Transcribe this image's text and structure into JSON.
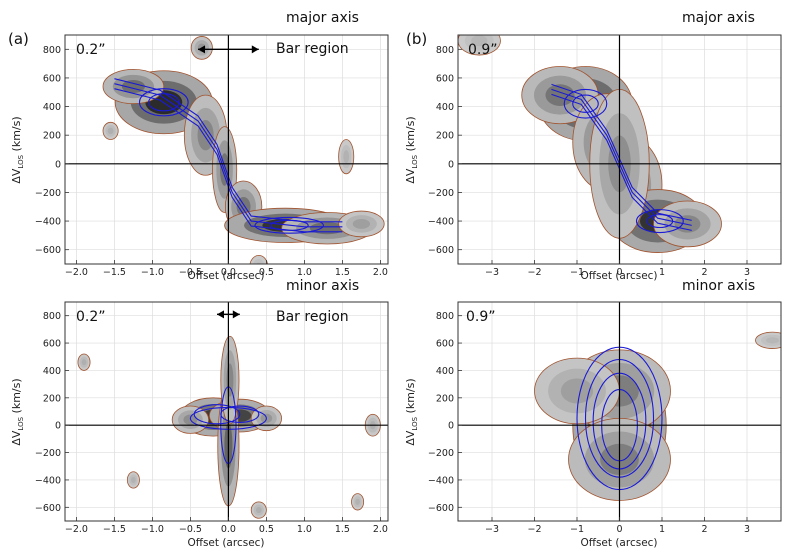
{
  "figure": {
    "label_a": "(a)",
    "label_b": "(b)",
    "colors": {
      "outer_contour": "#a0522d",
      "model_contour": "#1a1ad6",
      "emission_dark": "#2b2b2b",
      "emission_light": "#d0d0d0",
      "zero_lines": "#000000",
      "grid": "#dddddd"
    }
  },
  "chart_data": [
    {
      "type": "heatmap",
      "panel": "a-top",
      "title": "major axis",
      "resolution": "0.2”",
      "annotation": "Bar region",
      "xlabel": "Offset (arcsec)",
      "ylabel_main": "ΔV",
      "ylabel_sub": "LOS",
      "ylabel_unit": "(km/s)",
      "xlim": [
        -2.15,
        2.1
      ],
      "ylim": [
        -700,
        900
      ],
      "xticks": [
        -2.0,
        -1.5,
        -1.0,
        -0.5,
        0.0,
        0.5,
        1.0,
        1.5,
        2.0
      ],
      "xtick_labels": [
        "−2.0",
        "−1.5",
        "−1.0",
        "−0.5",
        "0.0",
        "0.5",
        "1.0",
        "1.5",
        "2.0"
      ],
      "yticks": [
        -600,
        -400,
        -200,
        0,
        200,
        400,
        600,
        800
      ],
      "ytick_labels": [
        "−600",
        "−400",
        "−200",
        "0",
        "200",
        "400",
        "600",
        "800"
      ],
      "bar_region": [
        -0.4,
        0.4
      ],
      "arrow_velocity": 800,
      "emission": [
        {
          "x": -0.85,
          "y": 430,
          "sx": 0.32,
          "sy": 110,
          "amp": 1.0
        },
        {
          "x": -1.25,
          "y": 540,
          "sx": 0.2,
          "sy": 60,
          "amp": 0.6
        },
        {
          "x": -0.3,
          "y": 200,
          "sx": 0.14,
          "sy": 140,
          "amp": 0.45
        },
        {
          "x": -0.05,
          "y": -40,
          "sx": 0.08,
          "sy": 150,
          "amp": 0.55
        },
        {
          "x": 0.2,
          "y": -300,
          "sx": 0.12,
          "sy": 90,
          "amp": 0.55
        },
        {
          "x": 0.75,
          "y": -430,
          "sx": 0.4,
          "sy": 60,
          "amp": 0.95
        },
        {
          "x": 1.3,
          "y": -450,
          "sx": 0.3,
          "sy": 55,
          "amp": 0.6
        },
        {
          "x": 1.75,
          "y": -420,
          "sx": 0.15,
          "sy": 45,
          "amp": 0.3
        },
        {
          "x": -0.35,
          "y": 810,
          "sx": 0.07,
          "sy": 40,
          "amp": 0.35
        },
        {
          "x": -1.55,
          "y": 230,
          "sx": 0.05,
          "sy": 30,
          "amp": 0.2
        },
        {
          "x": 1.55,
          "y": 50,
          "sx": 0.05,
          "sy": 60,
          "amp": 0.18
        },
        {
          "x": 0.4,
          "y": -720,
          "sx": 0.06,
          "sy": 40,
          "amp": 0.15
        }
      ],
      "model_contours": [
        {
          "center": [
            -0.85,
            430
          ],
          "rx": 0.32,
          "ry": 95
        },
        {
          "center": [
            -0.85,
            430
          ],
          "rx": 0.2,
          "ry": 60
        },
        {
          "center": [
            0.8,
            -430
          ],
          "rx": 0.45,
          "ry": 55
        },
        {
          "center": [
            0.8,
            -430
          ],
          "rx": 0.25,
          "ry": 35
        }
      ],
      "model_ridge": [
        [
          -1.5,
          560
        ],
        [
          -0.9,
          480
        ],
        [
          -0.4,
          300
        ],
        [
          -0.15,
          100
        ],
        [
          0.05,
          -200
        ],
        [
          0.3,
          -400
        ],
        [
          1.0,
          -440
        ],
        [
          1.5,
          -440
        ]
      ]
    },
    {
      "type": "heatmap",
      "panel": "b-top",
      "title": "major axis",
      "resolution": "0.9”",
      "annotation": "",
      "xlabel": "Offset (arcsec)",
      "ylabel_main": "ΔV",
      "ylabel_sub": "LOS",
      "ylabel_unit": "(km/s)",
      "xlim": [
        -3.8,
        3.8
      ],
      "ylim": [
        -700,
        900
      ],
      "xticks": [
        -3,
        -2,
        -1,
        0,
        1,
        2,
        3
      ],
      "xtick_labels": [
        "−3",
        "−2",
        "−1",
        "0",
        "1",
        "2",
        "3"
      ],
      "yticks": [
        -600,
        -400,
        -200,
        0,
        200,
        400,
        600,
        800
      ],
      "ytick_labels": [
        "−600",
        "−400",
        "−200",
        "0",
        "200",
        "400",
        "600",
        "800"
      ],
      "emission": [
        {
          "x": -0.8,
          "y": 420,
          "sx": 0.55,
          "sy": 130,
          "amp": 1.0
        },
        {
          "x": -1.4,
          "y": 480,
          "sx": 0.45,
          "sy": 100,
          "amp": 0.55
        },
        {
          "x": -0.3,
          "y": 150,
          "sx": 0.4,
          "sy": 170,
          "amp": 0.55
        },
        {
          "x": 0.2,
          "y": -150,
          "sx": 0.4,
          "sy": 170,
          "amp": 0.55
        },
        {
          "x": 0.9,
          "y": -400,
          "sx": 0.55,
          "sy": 110,
          "amp": 0.95
        },
        {
          "x": 1.6,
          "y": -420,
          "sx": 0.4,
          "sy": 80,
          "amp": 0.45
        },
        {
          "x": 0.0,
          "y": 0,
          "sx": 0.35,
          "sy": 260,
          "amp": 0.4
        },
        {
          "x": -3.3,
          "y": 860,
          "sx": 0.25,
          "sy": 50,
          "amp": 0.15
        }
      ],
      "model_contours": [
        {
          "center": [
            -0.8,
            420
          ],
          "rx": 0.5,
          "ry": 100
        },
        {
          "center": [
            -0.8,
            420
          ],
          "rx": 0.3,
          "ry": 60
        },
        {
          "center": [
            0.95,
            -400
          ],
          "rx": 0.55,
          "ry": 80
        },
        {
          "center": [
            0.95,
            -400
          ],
          "rx": 0.3,
          "ry": 45
        }
      ],
      "model_ridge": [
        [
          -1.6,
          520
        ],
        [
          -0.9,
          450
        ],
        [
          -0.3,
          200
        ],
        [
          0.3,
          -200
        ],
        [
          0.9,
          -380
        ],
        [
          1.7,
          -430
        ]
      ]
    },
    {
      "type": "heatmap",
      "panel": "a-bottom",
      "title": "minor axis",
      "resolution": "0.2”",
      "annotation": "Bar region",
      "xlabel": "Offset (arcsec)",
      "ylabel_main": "ΔV",
      "ylabel_sub": "LOS",
      "ylabel_unit": "(km/s)",
      "xlim": [
        -2.15,
        2.1
      ],
      "ylim": [
        -700,
        900
      ],
      "xticks": [
        -2.0,
        -1.5,
        -1.0,
        -0.5,
        0.0,
        0.5,
        1.0,
        1.5,
        2.0
      ],
      "xtick_labels": [
        "−2.0",
        "−1.5",
        "−1.0",
        "−0.5",
        "0.0",
        "0.5",
        "1.0",
        "1.5",
        "2.0"
      ],
      "yticks": [
        -600,
        -400,
        -200,
        0,
        200,
        400,
        600,
        800
      ],
      "ytick_labels": [
        "−600",
        "−400",
        "−200",
        "0",
        "200",
        "400",
        "600",
        "800"
      ],
      "bar_region": [
        -0.15,
        0.15
      ],
      "arrow_velocity": 810,
      "emission": [
        {
          "x": -0.2,
          "y": 60,
          "sx": 0.22,
          "sy": 70,
          "amp": 0.9
        },
        {
          "x": 0.15,
          "y": 70,
          "sx": 0.2,
          "sy": 60,
          "amp": 0.85
        },
        {
          "x": 0.0,
          "y": -150,
          "sx": 0.07,
          "sy": 220,
          "amp": 0.65
        },
        {
          "x": 0.02,
          "y": 330,
          "sx": 0.06,
          "sy": 160,
          "amp": 0.45
        },
        {
          "x": -0.5,
          "y": 40,
          "sx": 0.12,
          "sy": 50,
          "amp": 0.4
        },
        {
          "x": 0.5,
          "y": 50,
          "sx": 0.1,
          "sy": 45,
          "amp": 0.35
        },
        {
          "x": -1.9,
          "y": 460,
          "sx": 0.04,
          "sy": 30,
          "amp": 0.2
        },
        {
          "x": 1.9,
          "y": 0,
          "sx": 0.05,
          "sy": 40,
          "amp": 0.2
        },
        {
          "x": -1.25,
          "y": -400,
          "sx": 0.04,
          "sy": 30,
          "amp": 0.18
        },
        {
          "x": 1.7,
          "y": -560,
          "sx": 0.04,
          "sy": 30,
          "amp": 0.18
        },
        {
          "x": 0.4,
          "y": -620,
          "sx": 0.05,
          "sy": 30,
          "amp": 0.2
        }
      ],
      "model_contours": [
        {
          "center": [
            -0.15,
            80
          ],
          "rx": 0.3,
          "ry": 70
        },
        {
          "center": [
            0.15,
            80
          ],
          "rx": 0.25,
          "ry": 60
        },
        {
          "center": [
            0.0,
            0
          ],
          "rx": 0.1,
          "ry": 280
        },
        {
          "center": [
            0.0,
            50
          ],
          "rx": 0.5,
          "ry": 80
        }
      ],
      "model_ridge": []
    },
    {
      "type": "heatmap",
      "panel": "b-bottom",
      "title": "minor axis",
      "resolution": "0.9”",
      "annotation": "",
      "xlabel": "Offset (arcsec)",
      "ylabel_main": "ΔV",
      "ylabel_sub": "LOS",
      "ylabel_unit": "(km/s)",
      "xlim": [
        -3.8,
        3.8
      ],
      "ylim": [
        -700,
        900
      ],
      "xticks": [
        -3,
        -2,
        -1,
        0,
        1,
        2,
        3
      ],
      "xtick_labels": [
        "−3",
        "−2",
        "−1",
        "0",
        "1",
        "2",
        "3"
      ],
      "yticks": [
        -600,
        -400,
        -200,
        0,
        200,
        400,
        600,
        800
      ],
      "ytick_labels": [
        "−600",
        "−400",
        "−200",
        "0",
        "200",
        "400",
        "600",
        "800"
      ],
      "emission": [
        {
          "x": 0.0,
          "y": 0,
          "sx": 0.55,
          "sy": 260,
          "amp": 1.0
        },
        {
          "x": 0.0,
          "y": 250,
          "sx": 0.6,
          "sy": 150,
          "amp": 0.5
        },
        {
          "x": 0.0,
          "y": -250,
          "sx": 0.6,
          "sy": 150,
          "amp": 0.5
        },
        {
          "x": -1.0,
          "y": 250,
          "sx": 0.5,
          "sy": 120,
          "amp": 0.3
        },
        {
          "x": 3.6,
          "y": 620,
          "sx": 0.2,
          "sy": 30,
          "amp": 0.15
        }
      ],
      "model_contours": [
        {
          "center": [
            0.0,
            50
          ],
          "rx": 1.0,
          "ry": 520
        },
        {
          "center": [
            0.0,
            50
          ],
          "rx": 0.8,
          "ry": 430
        },
        {
          "center": [
            0.0,
            30
          ],
          "rx": 0.62,
          "ry": 350
        },
        {
          "center": [
            0.0,
            0
          ],
          "rx": 0.42,
          "ry": 260
        }
      ],
      "model_ridge": []
    }
  ]
}
